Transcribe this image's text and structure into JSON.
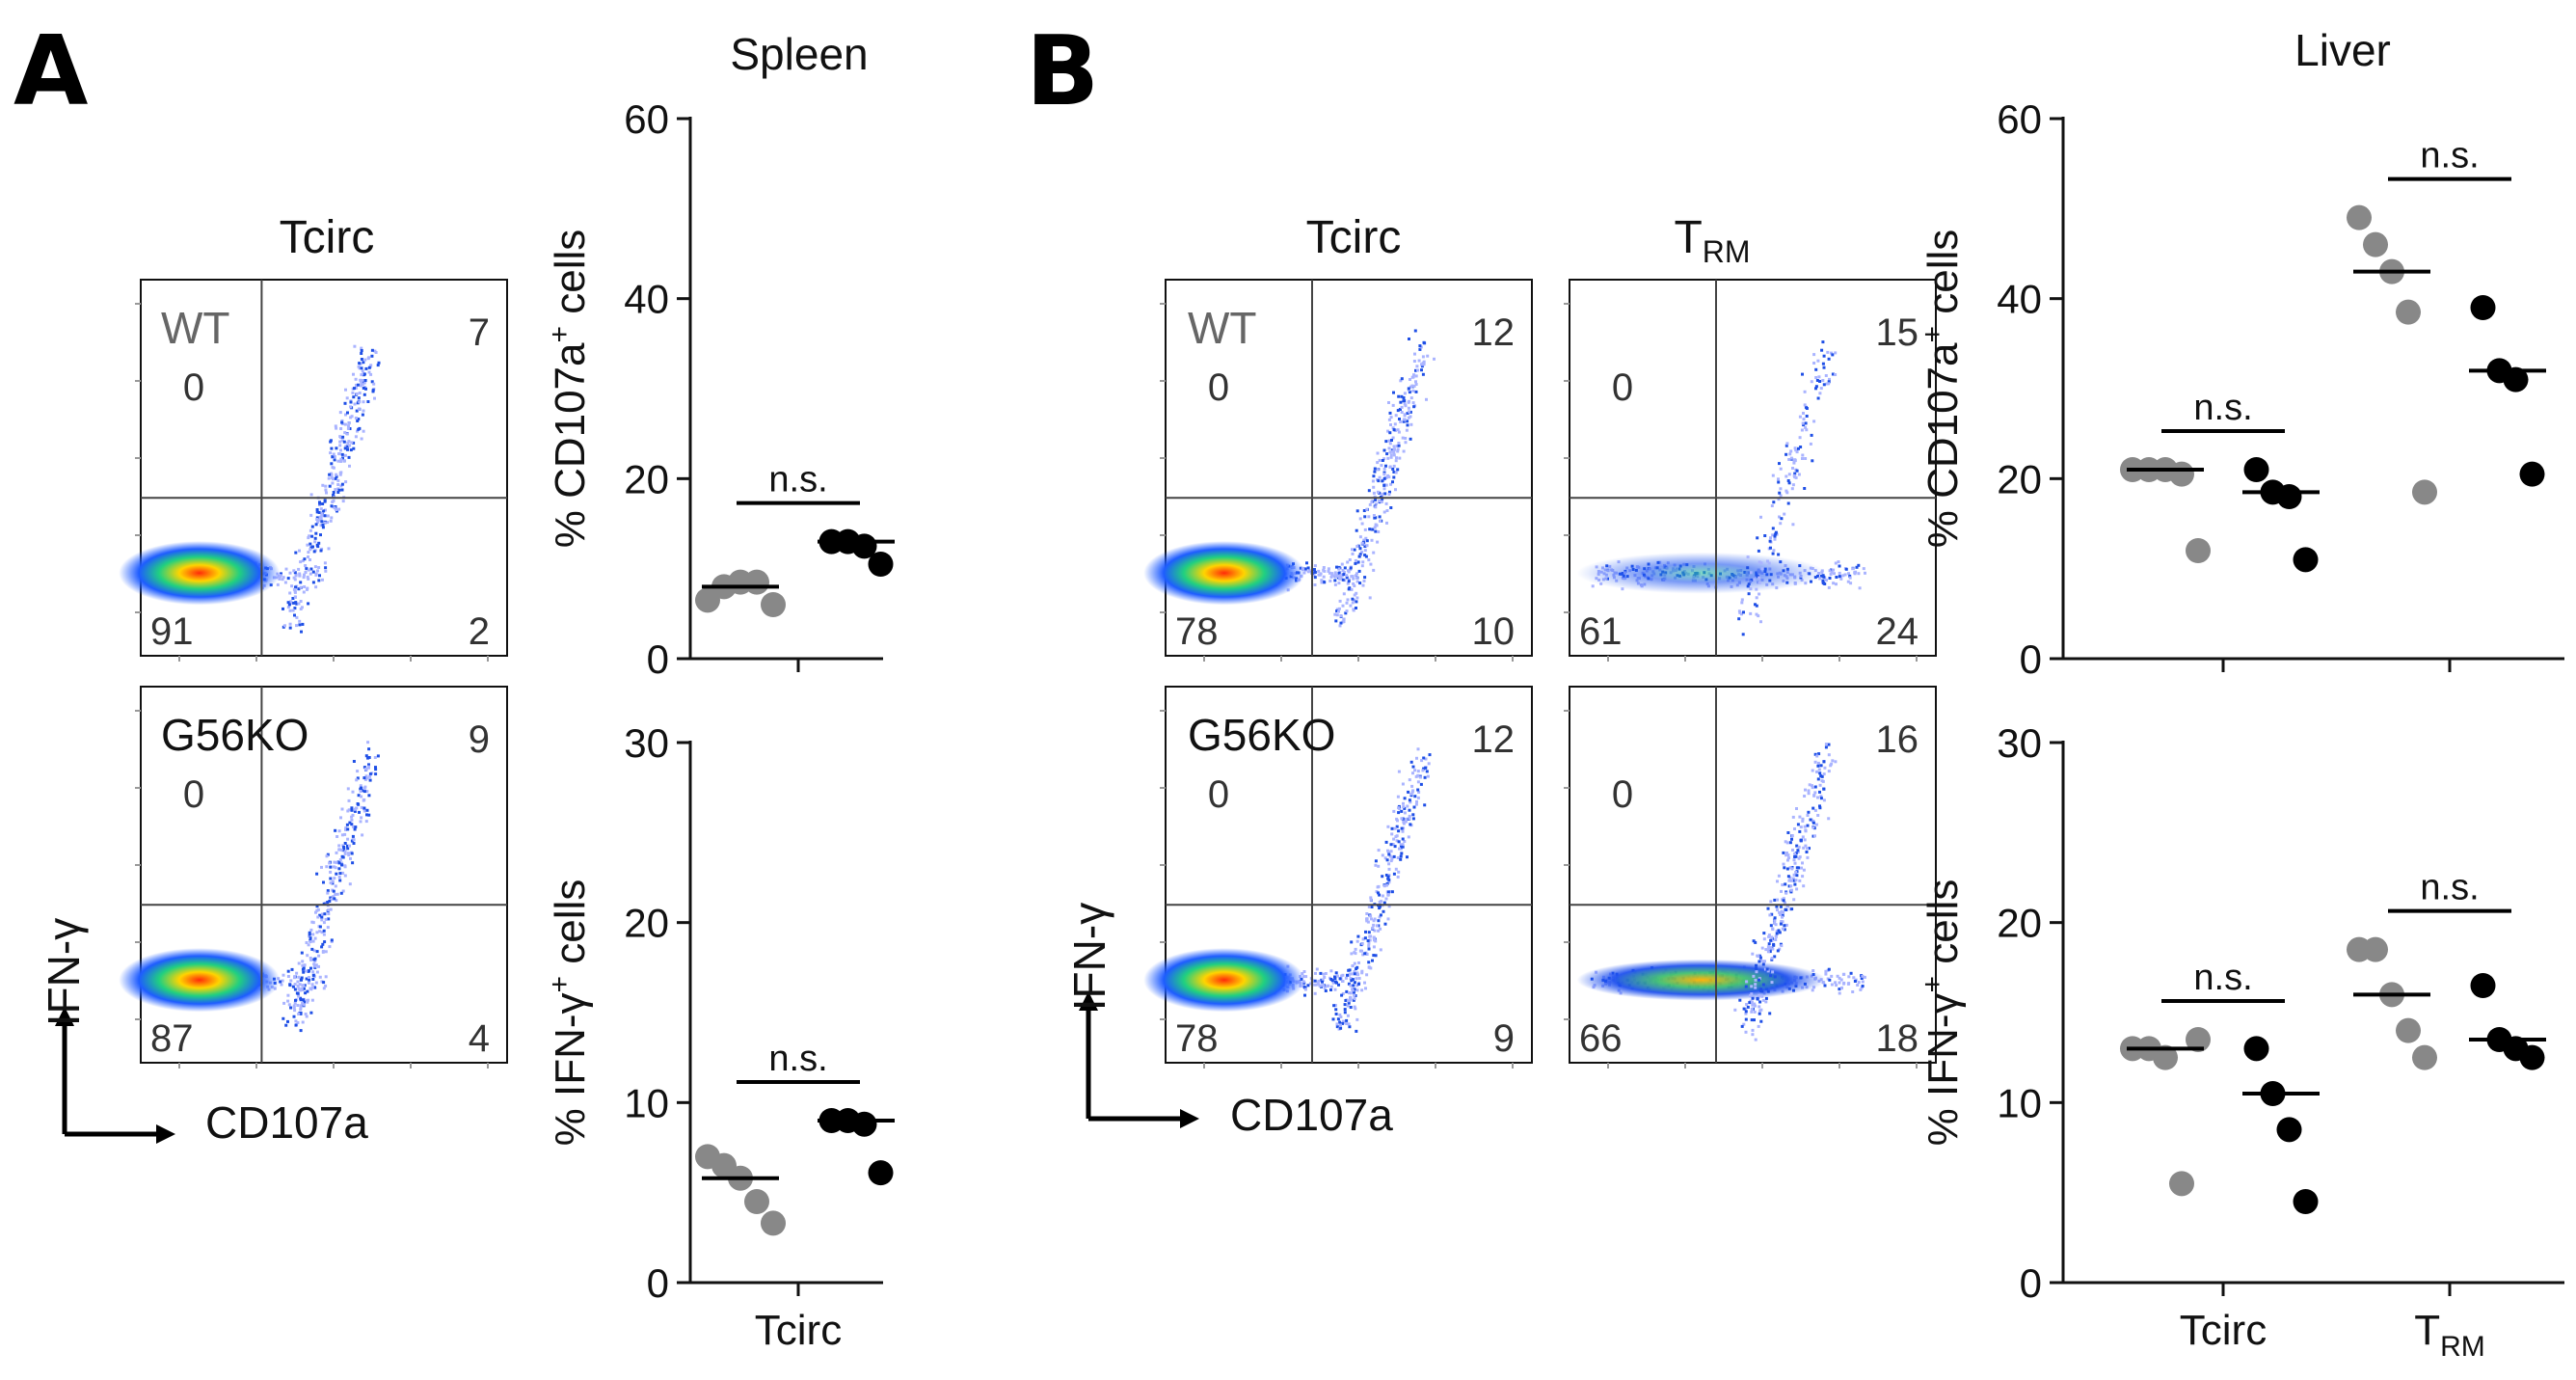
{
  "panels": {
    "A": {
      "letter": "A",
      "tissue": "Spleen"
    },
    "B": {
      "letter": "B",
      "tissue": "Liver"
    }
  },
  "colors": {
    "wt": "#888888",
    "ko": "#000000",
    "axis": "#111111",
    "gate": "#444444",
    "label": "#333333",
    "dens_low": "#aab4ff",
    "dens_mid": "#1f4fe6",
    "dens_high": "#ff3a14"
  },
  "flow": {
    "axis_x": "CD107a",
    "axis_y": "IFN-γ",
    "col_tcirc": "Tcirc",
    "col_trm": "T",
    "col_trm_sub": "RM",
    "row_wt": "WT",
    "row_ko": "G56KO",
    "plots": [
      {
        "id": "A_wt",
        "ul": "0",
        "ur": "7",
        "ll": "91",
        "lr": "2",
        "shape": "spleen_wt"
      },
      {
        "id": "A_ko",
        "ul": "0",
        "ur": "9",
        "ll": "87",
        "lr": "4",
        "shape": "spleen_ko"
      },
      {
        "id": "B_tc_wt",
        "ul": "0",
        "ur": "12",
        "ll": "78",
        "lr": "10",
        "shape": "liver_tc"
      },
      {
        "id": "B_trm_wt",
        "ul": "0",
        "ur": "15",
        "ll": "61",
        "lr": "24",
        "shape": "liver_trm"
      },
      {
        "id": "B_tc_ko",
        "ul": "0",
        "ur": "12",
        "ll": "78",
        "lr": "9",
        "shape": "liver_tc"
      },
      {
        "id": "B_trm_ko",
        "ul": "0",
        "ur": "16",
        "ll": "66",
        "lr": "18",
        "shape": "liver_trm_ko"
      }
    ]
  },
  "chart_data": [
    {
      "id": "spleen_cd107a",
      "type": "scatter",
      "title": "Spleen",
      "ylabel": "% CD107a",
      "ylabel_sup": "+",
      "ylabel_tail": " cells",
      "ylim": [
        0,
        60
      ],
      "yticks": [
        "0",
        "20",
        "40",
        "60"
      ],
      "categories": [
        "Tcirc"
      ],
      "show_xlabels": false,
      "sig": [
        "n.s."
      ],
      "series": [
        {
          "name": "WT",
          "values": [
            [
              6.5,
              8,
              8.5,
              8.5,
              6
            ]
          ]
        },
        {
          "name": "G56KO",
          "values": [
            [
              13,
              13,
              12.5,
              10.5
            ]
          ]
        }
      ]
    },
    {
      "id": "spleen_ifng",
      "type": "scatter",
      "title": "",
      "ylabel": "% IFN-γ",
      "ylabel_sup": "+",
      "ylabel_tail": " cells",
      "ylim": [
        0,
        30
      ],
      "yticks": [
        "0",
        "10",
        "20",
        "30"
      ],
      "categories": [
        "Tcirc"
      ],
      "show_xlabels": true,
      "sig": [
        "n.s."
      ],
      "series": [
        {
          "name": "WT",
          "values": [
            [
              7,
              6.5,
              5.8,
              4.5,
              3.3
            ]
          ]
        },
        {
          "name": "G56KO",
          "values": [
            [
              9,
              9,
              8.8,
              6.1
            ]
          ]
        }
      ]
    },
    {
      "id": "liver_cd107a",
      "type": "scatter",
      "title": "Liver",
      "ylabel": "% CD107a",
      "ylabel_sup": "+",
      "ylabel_tail": " cells",
      "ylim": [
        0,
        60
      ],
      "yticks": [
        "0",
        "20",
        "40",
        "60"
      ],
      "categories": [
        "Tcirc",
        "T_RM"
      ],
      "show_xlabels": false,
      "sig": [
        "n.s.",
        "n.s."
      ],
      "series": [
        {
          "name": "WT",
          "values": [
            [
              21,
              21,
              21,
              20.5,
              12
            ],
            [
              49,
              46,
              43,
              38.5,
              18.5
            ]
          ]
        },
        {
          "name": "G56KO",
          "values": [
            [
              21,
              18.5,
              18,
              11
            ],
            [
              39,
              32,
              31,
              20.5
            ]
          ]
        }
      ]
    },
    {
      "id": "liver_ifng",
      "type": "scatter",
      "title": "",
      "ylabel": "% IFN-γ",
      "ylabel_sup": "+",
      "ylabel_tail": " cells",
      "ylim": [
        0,
        30
      ],
      "yticks": [
        "0",
        "10",
        "20",
        "30"
      ],
      "categories": [
        "Tcirc",
        "T_RM"
      ],
      "show_xlabels": true,
      "sig": [
        "n.s.",
        "n.s."
      ],
      "series": [
        {
          "name": "WT",
          "values": [
            [
              13,
              13,
              12.5,
              5.5,
              13.5
            ],
            [
              18.5,
              18.5,
              16,
              14,
              12.5
            ]
          ]
        },
        {
          "name": "G56KO",
          "values": [
            [
              13,
              10.5,
              8.5,
              4.5
            ],
            [
              16.5,
              13.5,
              13,
              12.5
            ]
          ]
        }
      ]
    }
  ],
  "category_display": {
    "Tcirc": {
      "main": "Tcirc",
      "sub": ""
    },
    "T_RM": {
      "main": "T",
      "sub": "RM"
    }
  }
}
